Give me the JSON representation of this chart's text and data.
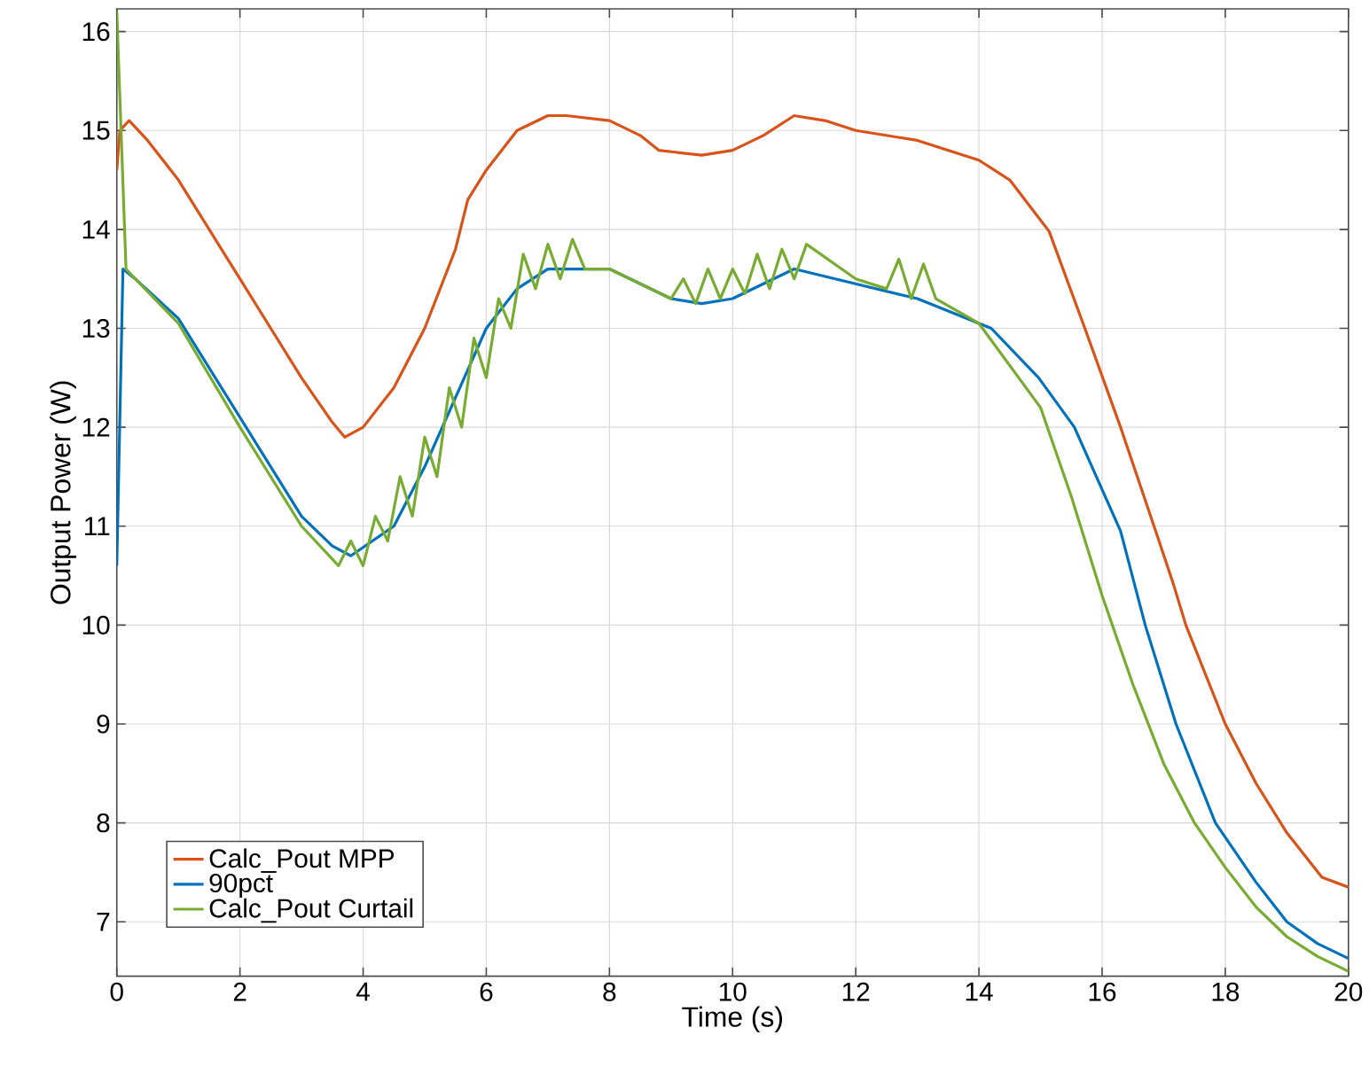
{
  "chart_data": {
    "type": "line",
    "xlabel": "Time (s)",
    "ylabel": "Output Power (W)",
    "xlim": [
      0,
      20
    ],
    "ylim": [
      6.45,
      16.23
    ],
    "xticks": [
      0,
      2,
      4,
      6,
      8,
      10,
      12,
      14,
      16,
      18,
      20
    ],
    "yticks": [
      7,
      8,
      9,
      10,
      11,
      12,
      13,
      14,
      15,
      16
    ],
    "grid": true,
    "legend": "bottom left",
    "marker": "none",
    "line_style": "solid",
    "series": [
      {
        "name": "Calc_Pout MPP",
        "color": "#d95319",
        "x": [
          0,
          0.05,
          0.2,
          0.5,
          1,
          1.5,
          2,
          2.5,
          3,
          3.5,
          3.7,
          4,
          4.5,
          5,
          5.5,
          5.7,
          6,
          6.5,
          7,
          7.3,
          8,
          8.5,
          8.8,
          9.5,
          10,
          10.5,
          11,
          11.5,
          12,
          13,
          14,
          14.5,
          15.14,
          15.72,
          16.3,
          16.87,
          17.16,
          17.36,
          18,
          18.5,
          19,
          19.57,
          20
        ],
        "values": [
          14.6,
          15.0,
          15.1,
          14.9,
          14.5,
          14.0,
          13.5,
          13.0,
          12.5,
          12.05,
          11.9,
          12.0,
          12.4,
          13.0,
          13.8,
          14.3,
          14.6,
          15.0,
          15.15,
          15.15,
          15.1,
          14.95,
          14.8,
          14.75,
          14.8,
          14.95,
          15.15,
          15.1,
          15.0,
          14.9,
          14.7,
          14.5,
          13.98,
          13.0,
          12.0,
          10.95,
          10.41,
          10.0,
          9.0,
          8.4,
          7.9,
          7.45,
          7.35
        ]
      },
      {
        "name": "90pct",
        "color": "#0072bd",
        "x": [
          0,
          0.1,
          0.3,
          1,
          2,
          3,
          3.5,
          3.8,
          4.5,
          5,
          5.5,
          6,
          6.5,
          7,
          8,
          8.5,
          9,
          9.5,
          10,
          10.5,
          11,
          12,
          13,
          14.2,
          14.97,
          15.55,
          16.3,
          16.7,
          17.2,
          17.84,
          18.5,
          19,
          19.5,
          20
        ],
        "values": [
          10.6,
          13.6,
          13.5,
          13.1,
          12.1,
          11.1,
          10.8,
          10.7,
          11.0,
          11.6,
          12.3,
          13.0,
          13.4,
          13.6,
          13.6,
          13.45,
          13.3,
          13.25,
          13.3,
          13.45,
          13.6,
          13.45,
          13.3,
          13.0,
          12.5,
          12.0,
          10.95,
          10.0,
          9.0,
          8.0,
          7.4,
          7.0,
          6.78,
          6.63
        ]
      },
      {
        "name": "Calc_Pout Curtail",
        "color": "#77ac30",
        "x": [
          0,
          0.15,
          0.3,
          1,
          2,
          3,
          3.6,
          3.8,
          4.0,
          4.2,
          4.4,
          4.6,
          4.8,
          5.0,
          5.2,
          5.4,
          5.6,
          5.8,
          6.0,
          6.2,
          6.4,
          6.6,
          6.8,
          7.0,
          7.2,
          7.4,
          7.6,
          8,
          8.5,
          9,
          9.2,
          9.4,
          9.6,
          9.8,
          10,
          10.2,
          10.4,
          10.6,
          10.8,
          11,
          11.2,
          12,
          12.5,
          12.7,
          12.9,
          13.1,
          13.3,
          14,
          15,
          15.5,
          16,
          16.5,
          17,
          17.5,
          18,
          18.5,
          19,
          19.5,
          20
        ],
        "values": [
          16.2,
          13.6,
          13.5,
          13.05,
          12.0,
          11.0,
          10.6,
          10.85,
          10.6,
          11.1,
          10.85,
          11.5,
          11.1,
          11.9,
          11.5,
          12.4,
          12.0,
          12.9,
          12.5,
          13.3,
          13.0,
          13.75,
          13.4,
          13.85,
          13.5,
          13.9,
          13.6,
          13.6,
          13.45,
          13.3,
          13.5,
          13.25,
          13.6,
          13.3,
          13.6,
          13.35,
          13.75,
          13.4,
          13.8,
          13.5,
          13.85,
          13.5,
          13.4,
          13.7,
          13.3,
          13.65,
          13.3,
          13.05,
          12.2,
          11.3,
          10.3,
          9.4,
          8.6,
          8.0,
          7.55,
          7.15,
          6.85,
          6.65,
          6.5
        ]
      }
    ]
  }
}
